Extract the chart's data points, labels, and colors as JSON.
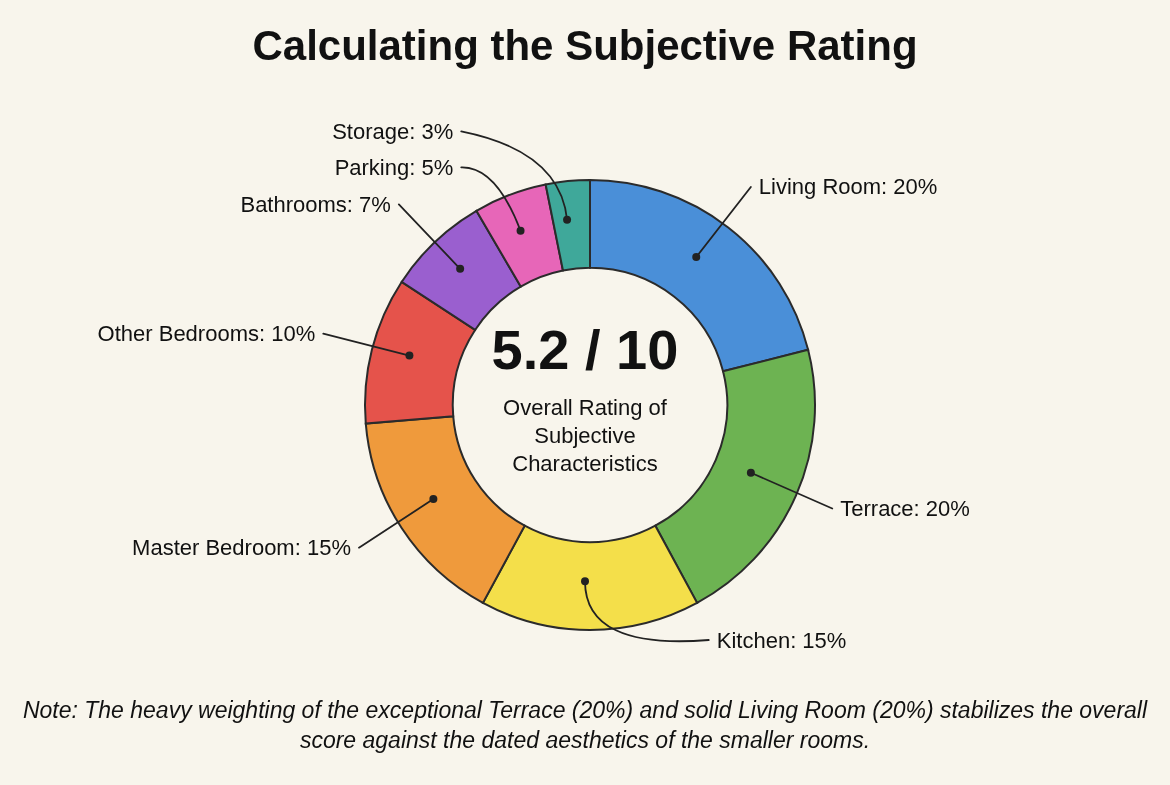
{
  "chart_data": {
    "type": "donut",
    "title": "Calculating the Subjective Rating",
    "categories": [
      "Living Room",
      "Terrace",
      "Kitchen",
      "Master Bedroom",
      "Other Bedrooms",
      "Bathrooms",
      "Parking",
      "Storage"
    ],
    "values": [
      20,
      20,
      15,
      15,
      10,
      7,
      5,
      3
    ],
    "colors": [
      "#4a8fd8",
      "#6db352",
      "#f4df4a",
      "#ef9a3c",
      "#e5534b",
      "#9a5fcf",
      "#e766b8",
      "#3fa89a"
    ],
    "value_labels": [
      "20%",
      "20%",
      "15%",
      "15%",
      "10%",
      "7%",
      "5%",
      "3%"
    ],
    "annotations": [
      "5.2 / 10",
      "Overall Rating of Subjective Characteristics",
      "Note: The heavy weighting of the exceptional Terrace (20%) and solid Living Room (20%) stabilizes the overall score against the dated aesthetics of the smaller rooms."
    ]
  }
}
